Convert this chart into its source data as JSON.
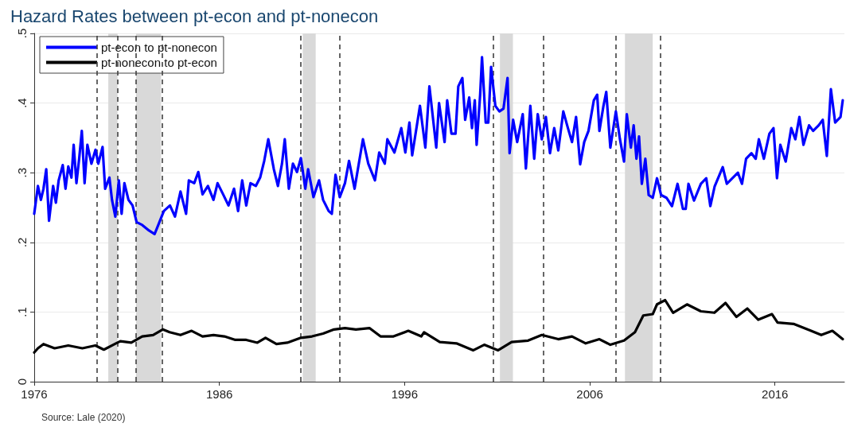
{
  "chart_data": {
    "type": "line",
    "title": "Hazard Rates between pt-econ and pt-nonecon",
    "annotations": [
      "Source: Lale (2020)"
    ],
    "xlim": [
      1976,
      2019.75
    ],
    "xticks": [
      1976,
      1986,
      1996,
      2006,
      2016
    ],
    "ylim": [
      0,
      0.5
    ],
    "yticks": [
      0,
      {
        "value": 0.1,
        "label": ".1"
      },
      {
        "value": 0.2,
        "label": ".2"
      },
      {
        "value": 0.3,
        "label": ".3"
      },
      {
        "value": 0.4,
        "label": ".4"
      },
      {
        "value": 0.5,
        "label": ".5"
      }
    ],
    "grid": "y",
    "legend": "top left",
    "marker": "none",
    "line_style": "solid",
    "series": [
      {
        "name": "pt-econ to pt-nonecon",
        "color": "#0000ff",
        "x": [
          1976.0,
          1976.2,
          1976.36,
          1976.5,
          1976.65,
          1976.8,
          1977.02,
          1977.17,
          1977.32,
          1977.54,
          1977.69,
          1977.84,
          1978.01,
          1978.13,
          1978.28,
          1978.43,
          1978.57,
          1978.72,
          1978.87,
          1979.09,
          1979.31,
          1979.46,
          1979.69,
          1979.83,
          1980.06,
          1980.2,
          1980.38,
          1980.57,
          1980.72,
          1980.87,
          1981.09,
          1981.31,
          1981.53,
          1981.83,
          1982.2,
          1982.5,
          1982.64,
          1983.0,
          1983.33,
          1983.6,
          1983.9,
          1984.2,
          1984.35,
          1984.64,
          1984.86,
          1985.09,
          1985.38,
          1985.68,
          1985.9,
          1986.2,
          1986.49,
          1986.79,
          1987.01,
          1987.23,
          1987.45,
          1987.68,
          1987.97,
          1988.2,
          1988.42,
          1988.64,
          1988.94,
          1989.16,
          1989.38,
          1989.53,
          1989.75,
          1989.97,
          1990.19,
          1990.4,
          1990.64,
          1990.79,
          1991.08,
          1991.38,
          1991.6,
          1991.9,
          1992.07,
          1992.27,
          1992.5,
          1992.78,
          1993.0,
          1993.3,
          1993.75,
          1994.04,
          1994.4,
          1994.63,
          1994.93,
          1995.07,
          1995.45,
          1995.82,
          1996.04,
          1996.26,
          1996.41,
          1996.83,
          1997.12,
          1997.34,
          1997.71,
          1997.86,
          1998.16,
          1998.3,
          1998.53,
          1998.75,
          1998.9,
          1999.12,
          1999.27,
          1999.49,
          1999.64,
          1999.79,
          1999.89,
          2000.08,
          2000.18,
          2000.38,
          2000.52,
          2000.67,
          2000.9,
          2001.12,
          2001.34,
          2001.56,
          2001.67,
          2001.86,
          2002.08,
          2002.38,
          2002.55,
          2002.79,
          2003.0,
          2003.19,
          2003.41,
          2003.63,
          2003.85,
          2004.08,
          2004.3,
          2004.57,
          2004.82,
          2005.04,
          2005.26,
          2005.48,
          2005.7,
          2005.93,
          2006.22,
          2006.4,
          2006.52,
          2006.74,
          2006.89,
          2007.11,
          2007.41,
          2007.63,
          2007.85,
          2008.0,
          2008.22,
          2008.37,
          2008.52,
          2008.66,
          2008.81,
          2009.0,
          2009.18,
          2009.4,
          2009.63,
          2009.85,
          2010.14,
          2010.44,
          2010.74,
          2011.03,
          2011.18,
          2011.33,
          2011.63,
          2012.0,
          2012.29,
          2012.51,
          2012.74,
          2013.18,
          2013.4,
          2013.7,
          2014.0,
          2014.22,
          2014.44,
          2014.73,
          2014.96,
          2015.13,
          2015.4,
          2015.7,
          2015.92,
          2016.11,
          2016.29,
          2016.58,
          2016.88,
          2017.1,
          2017.32,
          2017.54,
          2017.84,
          2018.06,
          2018.36,
          2018.58,
          2018.8,
          2019.02,
          2019.25,
          2019.54,
          2019.66
        ],
        "values": [
          0.241,
          0.281,
          0.261,
          0.277,
          0.305,
          0.231,
          0.281,
          0.257,
          0.289,
          0.311,
          0.277,
          0.309,
          0.293,
          0.34,
          0.285,
          0.321,
          0.36,
          0.285,
          0.34,
          0.313,
          0.333,
          0.313,
          0.337,
          0.277,
          0.293,
          0.261,
          0.237,
          0.289,
          0.241,
          0.285,
          0.261,
          0.253,
          0.229,
          0.225,
          0.217,
          0.212,
          0.221,
          0.245,
          0.253,
          0.237,
          0.273,
          0.241,
          0.289,
          0.285,
          0.301,
          0.269,
          0.281,
          0.261,
          0.285,
          0.269,
          0.253,
          0.277,
          0.245,
          0.289,
          0.253,
          0.285,
          0.281,
          0.293,
          0.317,
          0.348,
          0.305,
          0.281,
          0.313,
          0.348,
          0.277,
          0.313,
          0.301,
          0.321,
          0.277,
          0.305,
          0.265,
          0.289,
          0.261,
          0.245,
          0.241,
          0.297,
          0.265,
          0.285,
          0.317,
          0.277,
          0.348,
          0.313,
          0.289,
          0.329,
          0.313,
          0.348,
          0.329,
          0.364,
          0.329,
          0.372,
          0.325,
          0.396,
          0.336,
          0.424,
          0.336,
          0.4,
          0.344,
          0.404,
          0.356,
          0.356,
          0.424,
          0.436,
          0.376,
          0.408,
          0.364,
          0.404,
          0.34,
          0.412,
          0.466,
          0.372,
          0.372,
          0.452,
          0.396,
          0.388,
          0.392,
          0.436,
          0.328,
          0.376,
          0.344,
          0.384,
          0.306,
          0.396,
          0.32,
          0.384,
          0.348,
          0.38,
          0.328,
          0.364,
          0.332,
          0.388,
          0.364,
          0.344,
          0.38,
          0.312,
          0.344,
          0.36,
          0.404,
          0.412,
          0.36,
          0.396,
          0.416,
          0.336,
          0.388,
          0.348,
          0.316,
          0.384,
          0.336,
          0.368,
          0.32,
          0.352,
          0.284,
          0.32,
          0.268,
          0.264,
          0.292,
          0.268,
          0.264,
          0.252,
          0.284,
          0.248,
          0.248,
          0.284,
          0.26,
          0.284,
          0.292,
          0.252,
          0.28,
          0.308,
          0.284,
          0.292,
          0.3,
          0.284,
          0.32,
          0.328,
          0.32,
          0.348,
          0.32,
          0.356,
          0.364,
          0.292,
          0.34,
          0.316,
          0.364,
          0.348,
          0.38,
          0.34,
          0.368,
          0.36,
          0.368,
          0.376,
          0.324,
          0.42,
          0.372,
          0.38,
          0.404
        ]
      },
      {
        "name": "pt-nonecon to pt-econ",
        "color": "#000000",
        "x": [
          1976.0,
          1976.2,
          1976.5,
          1977.1,
          1977.84,
          1978.6,
          1979.3,
          1979.76,
          1980.35,
          1980.65,
          1981.24,
          1981.83,
          1982.42,
          1982.94,
          1983.31,
          1983.9,
          1984.5,
          1985.09,
          1985.68,
          1986.27,
          1986.86,
          1987.45,
          1988.05,
          1988.49,
          1989.08,
          1989.67,
          1990.4,
          1991.0,
          1991.6,
          1992.19,
          1992.78,
          1993.37,
          1994.1,
          1994.7,
          1995.4,
          1996.2,
          1996.9,
          1997.05,
          1997.9,
          1998.8,
          1999.7,
          2000.3,
          2001.04,
          2001.78,
          2002.67,
          2003.41,
          2004.3,
          2005.04,
          2005.78,
          2006.52,
          2007.11,
          2007.85,
          2008.44,
          2008.89,
          2009.4,
          2009.63,
          2010.07,
          2010.5,
          2011.25,
          2012.0,
          2012.73,
          2013.33,
          2013.92,
          2014.51,
          2015.1,
          2015.84,
          2016.14,
          2017.0,
          2017.76,
          2018.5,
          2019.1,
          2019.66
        ],
        "values": [
          0.042,
          0.048,
          0.054,
          0.048,
          0.052,
          0.048,
          0.052,
          0.046,
          0.054,
          0.058,
          0.056,
          0.065,
          0.067,
          0.075,
          0.071,
          0.067,
          0.073,
          0.065,
          0.067,
          0.065,
          0.06,
          0.06,
          0.056,
          0.063,
          0.054,
          0.056,
          0.063,
          0.065,
          0.069,
          0.075,
          0.077,
          0.075,
          0.077,
          0.065,
          0.065,
          0.073,
          0.065,
          0.071,
          0.057,
          0.055,
          0.045,
          0.053,
          0.045,
          0.057,
          0.059,
          0.067,
          0.061,
          0.065,
          0.055,
          0.061,
          0.053,
          0.059,
          0.071,
          0.095,
          0.097,
          0.111,
          0.117,
          0.099,
          0.111,
          0.101,
          0.099,
          0.113,
          0.093,
          0.105,
          0.089,
          0.097,
          0.085,
          0.083,
          0.075,
          0.067,
          0.073,
          0.061
        ]
      }
    ],
    "ref_lines": [
      {
        "axis": "x",
        "value": 1979.4,
        "color": "#404040",
        "line_style": "dashed"
      },
      {
        "axis": "x",
        "value": 1980.5,
        "color": "#404040",
        "line_style": "dashed"
      },
      {
        "axis": "x",
        "value": 1981.5,
        "color": "#404040",
        "line_style": "dashed"
      },
      {
        "axis": "x",
        "value": 1982.9,
        "color": "#404040",
        "line_style": "dashed"
      },
      {
        "axis": "x",
        "value": 1990.4,
        "color": "#404040",
        "line_style": "dashed"
      },
      {
        "axis": "x",
        "value": 1992.5,
        "color": "#404040",
        "line_style": "dashed"
      },
      {
        "axis": "x",
        "value": 2000.8,
        "color": "#404040",
        "line_style": "dashed"
      },
      {
        "axis": "x",
        "value": 2003.5,
        "color": "#404040",
        "line_style": "dashed"
      },
      {
        "axis": "x",
        "value": 2007.4,
        "color": "#404040",
        "line_style": "dashed"
      },
      {
        "axis": "x",
        "value": 2009.8,
        "color": "#404040",
        "line_style": "dashed"
      }
    ],
    "bands": [
      {
        "axis": "x",
        "from": 1980.0,
        "to": 1980.5,
        "color": "#d9d9d9"
      },
      {
        "axis": "x",
        "from": 1981.5,
        "to": 1982.85,
        "color": "#d9d9d9"
      },
      {
        "axis": "x",
        "from": 1990.5,
        "to": 1991.2,
        "color": "#d9d9d9"
      },
      {
        "axis": "x",
        "from": 2001.15,
        "to": 2001.85,
        "color": "#d9d9d9"
      },
      {
        "axis": "x",
        "from": 2007.9,
        "to": 2009.4,
        "color": "#d9d9d9"
      }
    ]
  }
}
